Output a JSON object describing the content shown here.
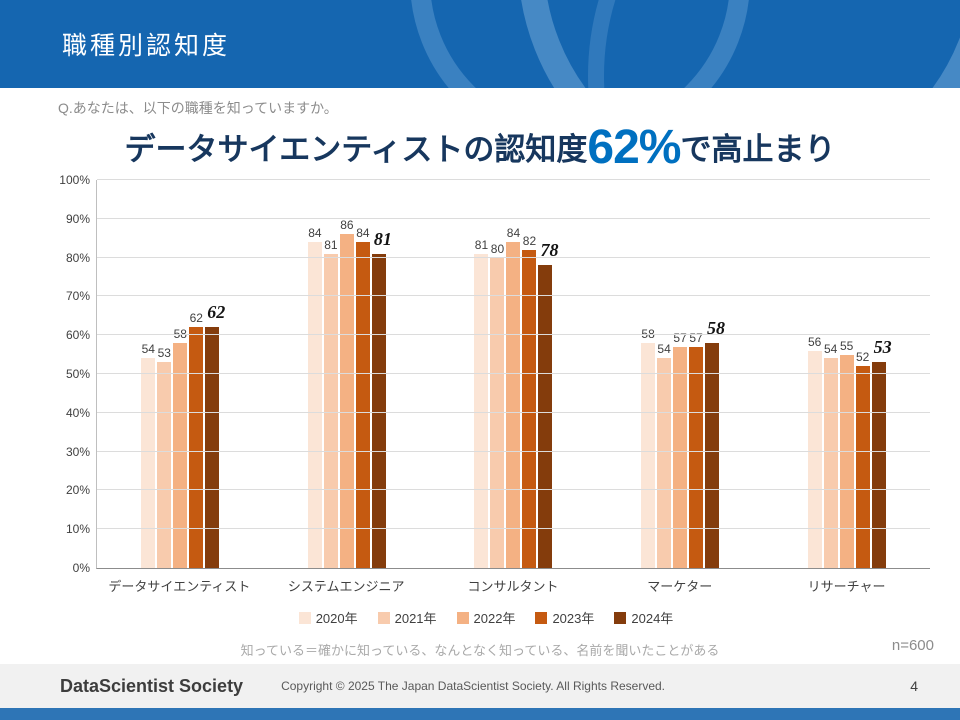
{
  "header": {
    "title": "職種別認知度"
  },
  "question": "Q.あなたは、以下の職種を知っていますか。",
  "headline": {
    "prefix": "データサイエンティストの認知度",
    "highlight": "62%",
    "suffix": "で高止まり"
  },
  "chart_data": {
    "type": "bar",
    "title": "データサイエンティストの認知度62%で高止まり",
    "categories": [
      "データサイエンティスト",
      "システムエンジニア",
      "コンサルタント",
      "マーケター",
      "リサーチャー"
    ],
    "series": [
      {
        "name": "2020年",
        "color": "#FBE5D6",
        "values": [
          54,
          84,
          81,
          58,
          56
        ]
      },
      {
        "name": "2021年",
        "color": "#F8CBAD",
        "values": [
          53,
          81,
          80,
          54,
          54
        ]
      },
      {
        "name": "2022年",
        "color": "#F4B183",
        "values": [
          58,
          86,
          84,
          57,
          55
        ]
      },
      {
        "name": "2023年",
        "color": "#C55A11",
        "values": [
          62,
          84,
          82,
          57,
          52
        ]
      },
      {
        "name": "2024年",
        "color": "#843C0C",
        "values": [
          62,
          81,
          78,
          58,
          53
        ]
      }
    ],
    "ylim": [
      0,
      100
    ],
    "ytick_step": 10,
    "ytick_suffix": "%",
    "grid": true,
    "legend_position": "bottom",
    "emphasize_last_series": true
  },
  "note": "知っている＝確かに知っている、なんとなく知っている、名前を聞いたことがある",
  "sample": "n=600",
  "footer": {
    "logo": "DataScientist Society",
    "copyright": "Copyright © 2025  The Japan DataScientist Society. All Rights Reserved.",
    "page": "4"
  }
}
